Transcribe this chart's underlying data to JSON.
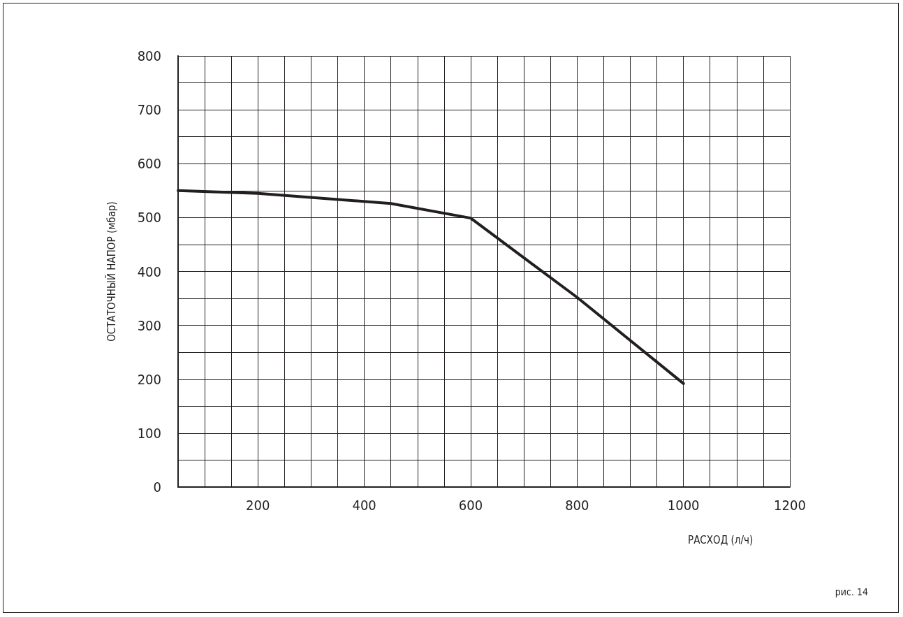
{
  "chart_data": {
    "type": "line",
    "xlabel": "РАСХОД (л/ч)",
    "ylabel": "ОСТАТОЧНЫЙ НАПОР (мбар)",
    "annotations": [
      "рис. 14"
    ],
    "x": [
      50,
      200,
      450,
      600,
      800,
      1000
    ],
    "series": [
      {
        "color": "#231f20",
        "values": [
          550,
          545,
          526,
          499,
          352,
          192
        ]
      }
    ],
    "xlim": [
      50,
      1200
    ],
    "xticks": [
      {
        "value": 50,
        "label": null
      },
      {
        "value": 100,
        "label": null
      },
      {
        "value": 150,
        "label": null
      },
      200,
      {
        "value": 250,
        "label": null
      },
      {
        "value": 300,
        "label": null
      },
      {
        "value": 350,
        "label": null
      },
      400,
      {
        "value": 450,
        "label": null
      },
      {
        "value": 500,
        "label": null
      },
      {
        "value": 550,
        "label": null
      },
      600,
      {
        "value": 650,
        "label": null
      },
      {
        "value": 700,
        "label": null
      },
      {
        "value": 750,
        "label": null
      },
      800,
      {
        "value": 850,
        "label": null
      },
      {
        "value": 900,
        "label": null
      },
      {
        "value": 950,
        "label": null
      },
      1000,
      {
        "value": 1050,
        "label": null
      },
      {
        "value": 1100,
        "label": null
      },
      {
        "value": 1150,
        "label": null
      },
      1200
    ],
    "ylim": [
      0,
      800
    ],
    "yticks": [
      0,
      {
        "value": 50,
        "label": null
      },
      100,
      {
        "value": 150,
        "label": null
      },
      200,
      {
        "value": 250,
        "label": null
      },
      300,
      {
        "value": 350,
        "label": null
      },
      400,
      {
        "value": 450,
        "label": null
      },
      500,
      {
        "value": 550,
        "label": null
      },
      600,
      {
        "value": 650,
        "label": null
      },
      700,
      {
        "value": 750,
        "label": null
      },
      800
    ],
    "grid": true,
    "marker": "none",
    "line_style": "solid"
  }
}
